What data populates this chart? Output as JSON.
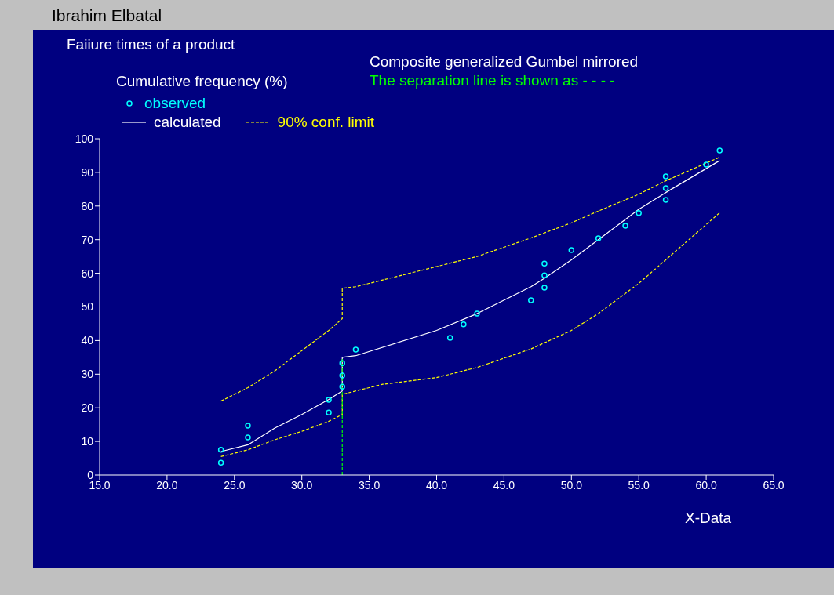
{
  "chart_data": {
    "type": "scatter",
    "title": "Ibrahim Elbatal",
    "subtitle": "Faiiure times of a product",
    "xlabel": "X-Data",
    "ylabel": "Cumulative frequency (%)",
    "annotations": [
      "Composite generalized Gumbel mirrored",
      "The separation line is shown as - - - -"
    ],
    "xlim": [
      15,
      65
    ],
    "xticks": [
      {
        "value": 15,
        "label": "15.0"
      },
      {
        "value": 20,
        "label": "20.0"
      },
      {
        "value": 25,
        "label": "25.0"
      },
      {
        "value": 30,
        "label": "30.0"
      },
      {
        "value": 35,
        "label": "35.0"
      },
      {
        "value": 40,
        "label": "40.0"
      },
      {
        "value": 45,
        "label": "45.0"
      },
      {
        "value": 50,
        "label": "50.0"
      },
      {
        "value": 55,
        "label": "55.0"
      },
      {
        "value": 60,
        "label": "60.0"
      },
      {
        "value": 65,
        "label": "65.0"
      }
    ],
    "ylim": [
      0,
      100
    ],
    "yticks": [
      0,
      10,
      20,
      30,
      40,
      50,
      60,
      70,
      80,
      90,
      100
    ],
    "legend": "top left",
    "series": [
      {
        "name": "observed",
        "marker": "circle",
        "color": "#00ffff",
        "x": [
          24,
          24,
          26,
          26,
          32,
          32,
          33,
          33,
          33,
          34,
          41,
          42,
          43,
          47,
          48,
          48,
          48,
          50,
          52,
          54,
          55,
          57,
          57,
          57,
          60,
          61
        ],
        "values": [
          3.7,
          7.5,
          11.2,
          14.7,
          18.6,
          22.4,
          26.3,
          29.6,
          33.3,
          37.3,
          40.8,
          44.8,
          48.0,
          52.0,
          55.7,
          59.4,
          62.9,
          66.9,
          70.4,
          74.1,
          77.9,
          81.8,
          85.3,
          88.8,
          92.3,
          96.5
        ]
      },
      {
        "name": "calculated",
        "type": "line",
        "marker": "none",
        "line_style": "solid",
        "color": "#ffffff",
        "x": [
          24,
          26,
          28,
          30,
          32,
          33,
          33,
          34,
          40,
          43,
          47,
          48,
          50,
          52,
          54,
          55,
          57,
          61
        ],
        "values": [
          7,
          9,
          14,
          18,
          22.5,
          25,
          35,
          35.5,
          43,
          48,
          56,
          58.5,
          64,
          70,
          76,
          79,
          84,
          93.5
        ]
      },
      {
        "name": "90% conf. limit",
        "type": "line",
        "marker": "none",
        "line_style": "dashed",
        "color": "#ffff00",
        "x": [
          24,
          26,
          28,
          30,
          32,
          33,
          33,
          34,
          37,
          40,
          43,
          47,
          50,
          52,
          55,
          57,
          61
        ],
        "values": [
          22,
          26,
          31,
          37,
          43,
          46.5,
          55.5,
          56,
          59,
          62,
          65,
          70.5,
          75,
          78.5,
          83.5,
          87.5,
          94.5
        ]
      },
      {
        "type": "line",
        "marker": "none",
        "line_style": "dashed",
        "color": "#ffff00",
        "x": [
          24,
          26,
          28,
          30,
          32,
          33,
          33,
          34,
          36,
          40,
          43,
          47,
          50,
          52,
          54,
          55,
          57,
          61
        ],
        "values": [
          5.5,
          7.5,
          10.5,
          13,
          16,
          18,
          24,
          25,
          27,
          29,
          32,
          37.5,
          43,
          48,
          54,
          57,
          64,
          78
        ]
      },
      {
        "type": "line",
        "marker": "none",
        "line_style": "dashed",
        "color": "#00ff00",
        "x": [
          33,
          33
        ],
        "values": [
          0,
          35
        ]
      }
    ]
  }
}
